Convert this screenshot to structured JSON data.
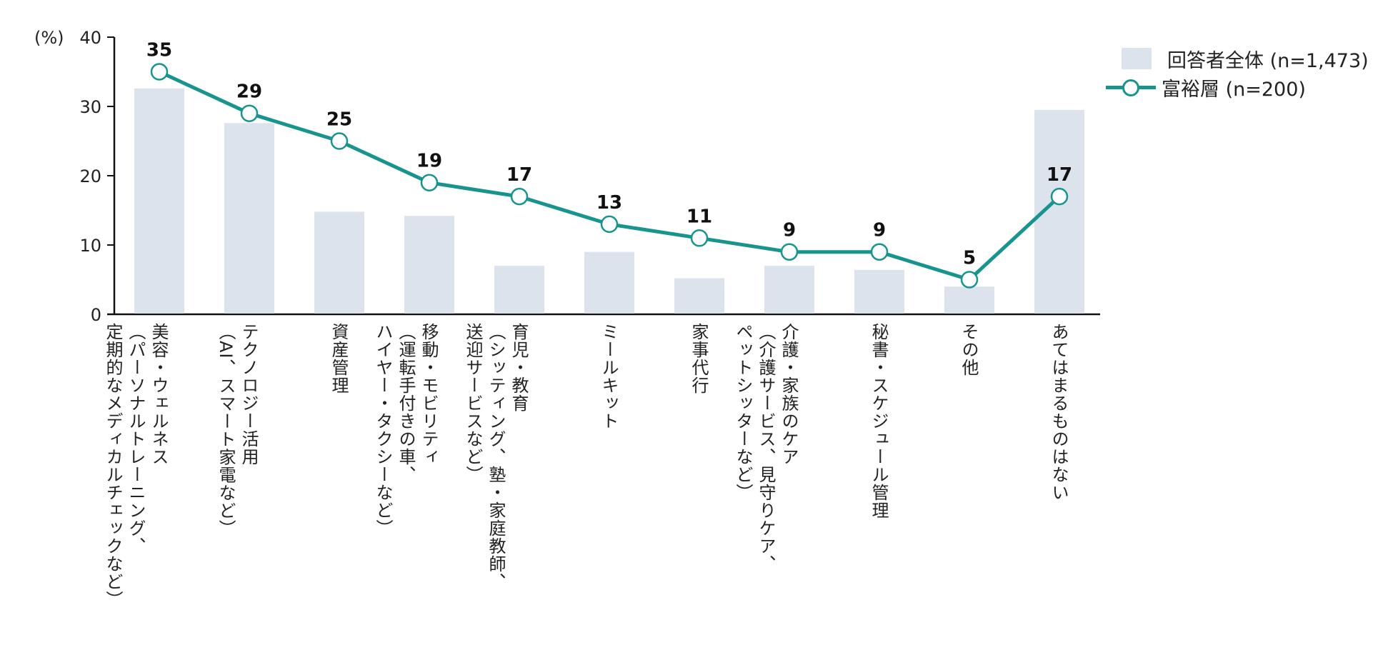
{
  "chart_data": {
    "type": "bar+line",
    "title": "",
    "ylabel": "(%)",
    "xlabel": "",
    "ylim": [
      0,
      40
    ],
    "yticks": [
      "0",
      "10",
      "20",
      "30",
      "40"
    ],
    "grid": false,
    "legend_position": "top-right",
    "categories": [
      "美容・ウェルネス（パーソナルトレーニング、定期的なメディカルチェックなど）",
      "テクノロジー活用（AI、スマート家電など）",
      "資産管理",
      "移動・モビリティ（運転手付きの車、ハイヤー・タクシーなど）",
      "育児・教育（シッティング、塾・家庭教師、送迎サービスなど）",
      "ミールキット",
      "家事代行",
      "介護・家族のケア（介護サービス、見守りケア、ペットシッターなど）",
      "秘書・スケジュール管理",
      "その他",
      "あてはまるものはない"
    ],
    "series": [
      {
        "name": "回答者全体 (n=1,473)",
        "type": "bar",
        "color": "#dce3ec",
        "values": [
          32.6,
          27.6,
          14.8,
          14.2,
          7.0,
          9.0,
          5.2,
          7.0,
          6.4,
          4.0,
          29.5
        ]
      },
      {
        "name": "富裕層 (n=200)",
        "type": "line",
        "color": "#17948e",
        "values": [
          35,
          29,
          25,
          19,
          17,
          13,
          11,
          9,
          9,
          5,
          17
        ],
        "data_labels": [
          "35",
          "29",
          "25",
          "19",
          "17",
          "13",
          "11",
          "9",
          "9",
          "5",
          "17"
        ]
      }
    ]
  },
  "axis": {
    "unit_label": "(%)",
    "ticks": [
      "40",
      "30",
      "20",
      "10",
      "0"
    ]
  },
  "x_labels": [
    [
      "美容・ウェルネス",
      "（パーソナルトレーニング、",
      "定期的なメディカルチェックなど）"
    ],
    [
      "テクノロジー活用",
      "（AI、スマート家電など）"
    ],
    [
      "資産管理"
    ],
    [
      "移動・モビリティ",
      "（運転手付きの車、",
      "ハイヤー・タクシーなど）"
    ],
    [
      "育児・教育",
      "（シッティング、塾・家庭教師、",
      "送迎サービスなど）"
    ],
    [
      "ミールキット"
    ],
    [
      "家事代行"
    ],
    [
      "介護・家族のケア",
      "（介護サービス、見守りケア、",
      "ペットシッターなど）"
    ],
    [
      "秘書・スケジュール管理"
    ],
    [
      "その他"
    ],
    [
      "あてはまるものはない"
    ]
  ],
  "legend": {
    "bar_label": "回答者全体 (n=1,473)",
    "line_label": "富裕層 (n=200)"
  },
  "colors": {
    "bar": "#dce3ec",
    "line": "#17948e",
    "axis": "#111111"
  }
}
